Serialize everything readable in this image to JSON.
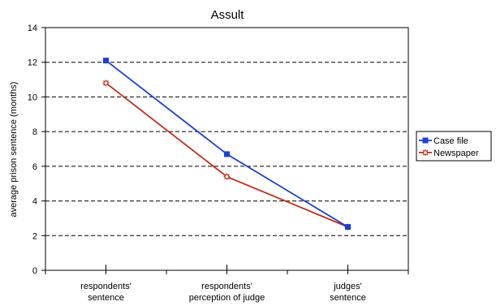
{
  "chart_data": {
    "type": "line",
    "title": "Assult",
    "ylabel": "average prison sentence (months)",
    "xlabel": "",
    "categories": [
      [
        "respondents'",
        "sentence"
      ],
      [
        "respondents'",
        "perception of judge"
      ],
      [
        "judges'",
        "sentence"
      ]
    ],
    "ylim": [
      0,
      14
    ],
    "yticks": [
      "0",
      "2",
      "4",
      "6",
      "8",
      "10",
      "12",
      "14"
    ],
    "grid": "horizontal dashed",
    "legend_position": "right",
    "series": [
      {
        "name": "Case file",
        "color": "#1a3fd4",
        "marker": "square",
        "values": [
          12.1,
          6.7,
          2.5
        ]
      },
      {
        "name": "Newspaper",
        "color": "#c0301a",
        "marker": "star",
        "values": [
          10.8,
          5.4,
          2.5
        ]
      }
    ]
  }
}
